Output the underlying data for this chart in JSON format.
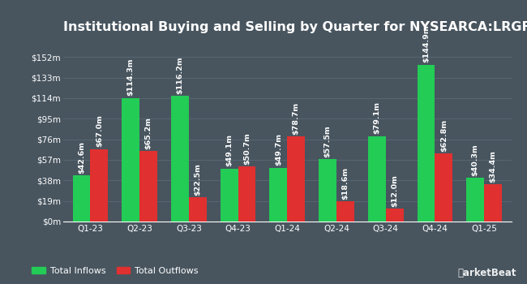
{
  "title": "Institutional Buying and Selling by Quarter for NYSEARCA:LRGF",
  "quarters": [
    "Q1-23",
    "Q2-23",
    "Q3-23",
    "Q4-23",
    "Q1-24",
    "Q2-24",
    "Q3-24",
    "Q4-24",
    "Q1-25"
  ],
  "inflows": [
    42.6,
    114.3,
    116.2,
    49.1,
    49.7,
    57.5,
    79.1,
    144.9,
    40.3
  ],
  "outflows": [
    67.0,
    65.2,
    22.5,
    50.7,
    78.7,
    18.6,
    12.0,
    62.8,
    34.4
  ],
  "inflow_color": "#22cc55",
  "outflow_color": "#e03030",
  "background_color": "#48555f",
  "grid_color": "#5a6a75",
  "text_color": "#ffffff",
  "bar_label_color": "#ffffff",
  "yticks": [
    0,
    19,
    38,
    57,
    76,
    95,
    114,
    133,
    152
  ],
  "ytick_labels": [
    "$0m",
    "$19m",
    "$38m",
    "$57m",
    "$76m",
    "$95m",
    "$114m",
    "$133m",
    "$152m"
  ],
  "ylim": [
    0,
    168
  ],
  "legend_inflow": "Total Inflows",
  "legend_outflow": "Total Outflows",
  "title_fontsize": 11.5,
  "label_fontsize": 6.8,
  "tick_fontsize": 7.5,
  "legend_fontsize": 8.0,
  "bar_width": 0.36
}
